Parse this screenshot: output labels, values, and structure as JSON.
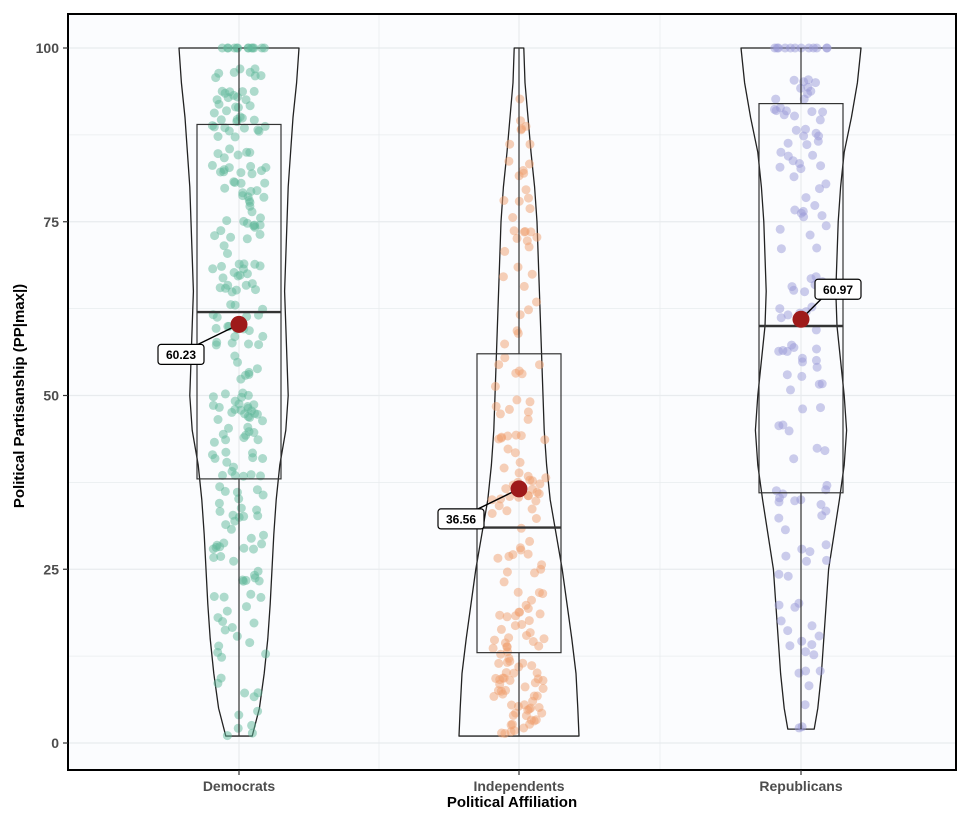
{
  "chart_data": {
    "type": "violin-box-jitter",
    "xlabel": "Political Affiliation",
    "ylabel": "Political Partisanship (PP|max|)",
    "ylim": [
      0,
      100
    ],
    "yticks": [
      "0",
      "25",
      "50",
      "75",
      "100"
    ],
    "grid": true,
    "categories": [
      "Democrats",
      "Independents",
      "Republicans"
    ],
    "groups": [
      {
        "name": "Democrats",
        "color": "#5fb89a",
        "box": {
          "min": 1,
          "q1": 38,
          "median": 62,
          "q3": 89,
          "max": 100
        },
        "mean": 60.23,
        "mean_label": "60.23",
        "density": [
          [
            1,
            0.22
          ],
          [
            5,
            0.34
          ],
          [
            10,
            0.42
          ],
          [
            15,
            0.48
          ],
          [
            20,
            0.52
          ],
          [
            25,
            0.55
          ],
          [
            30,
            0.58
          ],
          [
            35,
            0.62
          ],
          [
            40,
            0.68
          ],
          [
            45,
            0.78
          ],
          [
            50,
            0.82
          ],
          [
            55,
            0.8
          ],
          [
            60,
            0.78
          ],
          [
            65,
            0.76
          ],
          [
            70,
            0.78
          ],
          [
            75,
            0.8
          ],
          [
            80,
            0.82
          ],
          [
            85,
            0.86
          ],
          [
            90,
            0.9
          ],
          [
            95,
            0.96
          ],
          [
            100,
            1.0
          ]
        ],
        "n_points": 260
      },
      {
        "name": "Independents",
        "color": "#f0a070",
        "box": {
          "min": 1,
          "q1": 13,
          "median": 31,
          "q3": 56,
          "max": 100
        },
        "mean": 36.56,
        "mean_label": "36.56",
        "density": [
          [
            1,
            1.0
          ],
          [
            5,
            0.98
          ],
          [
            10,
            0.95
          ],
          [
            15,
            0.88
          ],
          [
            20,
            0.8
          ],
          [
            25,
            0.72
          ],
          [
            30,
            0.62
          ],
          [
            35,
            0.52
          ],
          [
            40,
            0.46
          ],
          [
            45,
            0.42
          ],
          [
            50,
            0.4
          ],
          [
            55,
            0.38
          ],
          [
            60,
            0.36
          ],
          [
            65,
            0.34
          ],
          [
            70,
            0.32
          ],
          [
            75,
            0.3
          ],
          [
            80,
            0.26
          ],
          [
            85,
            0.2
          ],
          [
            90,
            0.15
          ],
          [
            95,
            0.1
          ],
          [
            100,
            0.08
          ]
        ],
        "n_points": 180
      },
      {
        "name": "Republicans",
        "color": "#9a9ad8",
        "box": {
          "min": 2,
          "q1": 36,
          "median": 60,
          "q3": 92,
          "max": 100
        },
        "mean": 60.97,
        "mean_label": "60.97",
        "density": [
          [
            2,
            0.22
          ],
          [
            5,
            0.28
          ],
          [
            10,
            0.34
          ],
          [
            15,
            0.38
          ],
          [
            20,
            0.42
          ],
          [
            25,
            0.46
          ],
          [
            30,
            0.55
          ],
          [
            35,
            0.64
          ],
          [
            40,
            0.72
          ],
          [
            45,
            0.76
          ],
          [
            50,
            0.72
          ],
          [
            55,
            0.66
          ],
          [
            60,
            0.6
          ],
          [
            65,
            0.58
          ],
          [
            70,
            0.6
          ],
          [
            75,
            0.62
          ],
          [
            80,
            0.66
          ],
          [
            85,
            0.72
          ],
          [
            90,
            0.84
          ],
          [
            95,
            0.94
          ],
          [
            100,
            1.0
          ]
        ],
        "n_points": 140
      }
    ]
  },
  "colors": {
    "panel_background": "#fbfcfe",
    "grid": "#e8ebee",
    "mean_point": "#9e1a1a"
  }
}
